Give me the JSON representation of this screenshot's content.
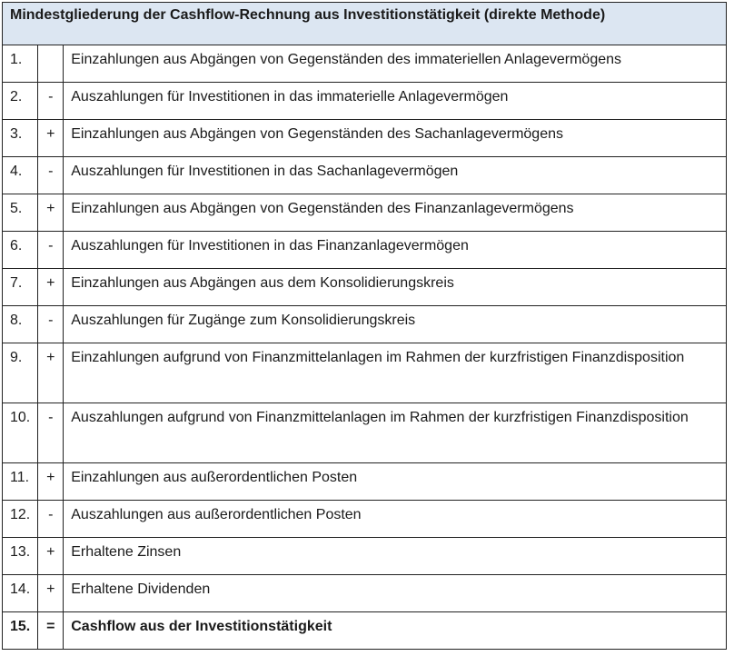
{
  "title": "Mindestgliederung der Cashflow-Rechnung aus Investitionstätigkeit (direkte Methode)",
  "header_bg": "#dce6f2",
  "rows": [
    {
      "num": "1.",
      "sign": "",
      "text": "Einzahlungen aus Abgängen von Gegenständen des immateriellen Anlagevermögens"
    },
    {
      "num": "2.",
      "sign": "-",
      "text": "Auszahlungen für Investitionen in das immaterielle Anlagevermögen"
    },
    {
      "num": "3.",
      "sign": "+",
      "text": "Einzahlungen aus Abgängen von Gegenständen des Sachanlagevermögens"
    },
    {
      "num": "4.",
      "sign": "-",
      "text": "Auszahlungen für Investitionen in das Sachanlagevermögen"
    },
    {
      "num": "5.",
      "sign": "+",
      "text": "Einzahlungen aus Abgängen von Gegenständen des Finanzanlagevermögens"
    },
    {
      "num": "6.",
      "sign": "-",
      "text": "Auszahlungen für Investitionen in das Finanzanlagevermögen"
    },
    {
      "num": "7.",
      "sign": "+",
      "text": "Einzahlungen aus Abgängen aus dem Konsolidierungskreis"
    },
    {
      "num": "8.",
      "sign": "-",
      "text": "Auszahlungen für Zugänge zum Konsolidierungskreis"
    },
    {
      "num": "9.",
      "sign": "+",
      "text": "Einzahlungen aufgrund von Finanzmittelanlagen im Rahmen der kurzfristigen Finanzdisposition"
    },
    {
      "num": "10.",
      "sign": "-",
      "text": "Auszahlungen aufgrund von Finanzmittelanlagen im Rahmen der kurzfristigen Finanzdisposition"
    },
    {
      "num": "11.",
      "sign": "+",
      "text": "Einzahlungen aus außerordentlichen Posten"
    },
    {
      "num": "12.",
      "sign": "-",
      "text": "Auszahlungen aus außerordentlichen Posten"
    },
    {
      "num": "13.",
      "sign": "+",
      "text": "Erhaltene Zinsen"
    },
    {
      "num": "14.",
      "sign": "+",
      "text": "Erhaltene Dividenden"
    },
    {
      "num": "15.",
      "sign": "=",
      "text": "Cashflow aus der Investitionstätigkeit"
    }
  ]
}
